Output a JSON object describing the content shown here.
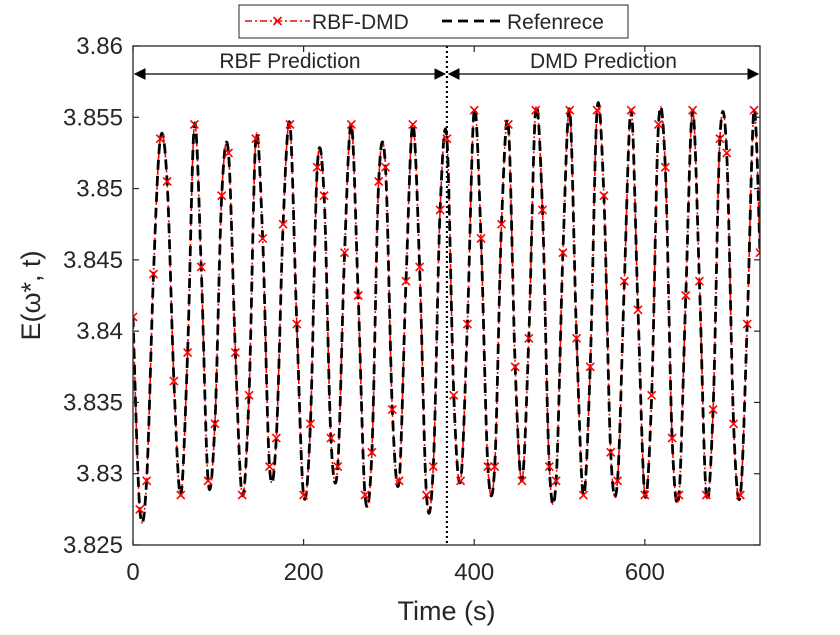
{
  "chart_data": {
    "type": "line",
    "xlabel": "Time (s)",
    "ylabel": "E(ω*, t)",
    "xlim": [
      0,
      735
    ],
    "ylim": [
      3.825,
      3.86
    ],
    "x_ticks": [
      0,
      200,
      400,
      600
    ],
    "y_ticks": [
      3.825,
      3.83,
      3.835,
      3.84,
      3.845,
      3.85,
      3.855,
      3.86
    ],
    "x_tick_labels": [
      "0",
      "200",
      "400",
      "600"
    ],
    "y_tick_labels": [
      "3.825",
      "3.83",
      "3.835",
      "3.84",
      "3.845",
      "3.85",
      "3.855",
      "3.86"
    ],
    "grid": false,
    "legend_position": "top-center",
    "split_x": 368,
    "regions": [
      {
        "label": "RBF Prediction",
        "from": 0,
        "to": 368
      },
      {
        "label": "DMD Prediction",
        "from": 368,
        "to": 735
      }
    ],
    "series": [
      {
        "name": "RBF-DMD",
        "color": "#ff0000",
        "style": "dash-dot",
        "marker": "x",
        "x": [
          0,
          8,
          16,
          24,
          32,
          40,
          48,
          56,
          64,
          72,
          80,
          88,
          96,
          104,
          112,
          120,
          128,
          136,
          144,
          152,
          160,
          168,
          176,
          184,
          192,
          200,
          208,
          216,
          224,
          232,
          240,
          248,
          256,
          264,
          272,
          280,
          288,
          296,
          304,
          312,
          320,
          328,
          336,
          344,
          352,
          360,
          368,
          376,
          384,
          392,
          400,
          408,
          416,
          424,
          432,
          440,
          448,
          456,
          464,
          472,
          480,
          488,
          496,
          504,
          512,
          520,
          528,
          536,
          544,
          552,
          560,
          568,
          576,
          584,
          592,
          600,
          608,
          616,
          624,
          632,
          640,
          648,
          656,
          664,
          672,
          680,
          688,
          696,
          704,
          712,
          720,
          728,
          735
        ],
        "y": [
          3.841,
          3.8275,
          3.8295,
          3.844,
          3.8535,
          3.8505,
          3.8365,
          3.8285,
          3.8385,
          3.8545,
          3.8445,
          3.8295,
          3.8335,
          3.8495,
          3.8525,
          3.8385,
          3.8285,
          3.8355,
          3.8535,
          3.8465,
          3.8305,
          3.8325,
          3.8475,
          3.8545,
          3.8405,
          3.8285,
          3.8335,
          3.8515,
          3.8495,
          3.8325,
          3.8305,
          3.8455,
          3.8545,
          3.8425,
          3.8285,
          3.8315,
          3.8505,
          3.8515,
          3.8345,
          3.8295,
          3.8435,
          3.8545,
          3.8445,
          3.8285,
          3.8305,
          3.8485,
          3.8535,
          3.8355,
          3.8295,
          3.8405,
          3.8555,
          3.8465,
          3.8305,
          3.8305,
          3.8475,
          3.8545,
          3.8375,
          3.8295,
          3.8395,
          3.8555,
          3.8485,
          3.8305,
          3.8295,
          3.8455,
          3.8555,
          3.8395,
          3.8285,
          3.8375,
          3.8555,
          3.8495,
          3.8315,
          3.8295,
          3.8435,
          3.8555,
          3.8415,
          3.8285,
          3.8355,
          3.8545,
          3.8515,
          3.8325,
          3.8285,
          3.8425,
          3.8555,
          3.8435,
          3.8285,
          3.8345,
          3.8535,
          3.8525,
          3.8335,
          3.8285,
          3.8405,
          3.8555,
          3.8455
        ]
      },
      {
        "name": "Refenrece",
        "color": "#000000",
        "style": "dashed",
        "marker": "none",
        "x": [
          0,
          8,
          16,
          24,
          32,
          40,
          48,
          56,
          64,
          72,
          80,
          88,
          96,
          104,
          112,
          120,
          128,
          136,
          144,
          152,
          160,
          168,
          176,
          184,
          192,
          200,
          208,
          216,
          224,
          232,
          240,
          248,
          256,
          264,
          272,
          280,
          288,
          296,
          304,
          312,
          320,
          328,
          336,
          344,
          352,
          360,
          368,
          376,
          384,
          392,
          400,
          408,
          416,
          424,
          432,
          440,
          448,
          456,
          464,
          472,
          480,
          488,
          496,
          504,
          512,
          520,
          528,
          536,
          544,
          552,
          560,
          568,
          576,
          584,
          592,
          600,
          608,
          616,
          624,
          632,
          640,
          648,
          656,
          664,
          672,
          680,
          688,
          696,
          704,
          712,
          720,
          728,
          735
        ],
        "y": [
          3.841,
          3.8275,
          3.8295,
          3.844,
          3.8535,
          3.8505,
          3.8365,
          3.8285,
          3.8385,
          3.8545,
          3.8445,
          3.8295,
          3.8335,
          3.8495,
          3.8525,
          3.8385,
          3.8285,
          3.8355,
          3.8535,
          3.8465,
          3.8305,
          3.8325,
          3.8475,
          3.8545,
          3.8405,
          3.8285,
          3.8335,
          3.8515,
          3.8495,
          3.8325,
          3.8305,
          3.8455,
          3.8545,
          3.8425,
          3.8285,
          3.8315,
          3.8505,
          3.8515,
          3.8345,
          3.8295,
          3.8435,
          3.8545,
          3.8445,
          3.8285,
          3.8305,
          3.8485,
          3.8535,
          3.8355,
          3.8295,
          3.8405,
          3.8555,
          3.8465,
          3.8305,
          3.8305,
          3.8475,
          3.8545,
          3.8375,
          3.8295,
          3.8395,
          3.8555,
          3.8485,
          3.8305,
          3.8295,
          3.8455,
          3.8555,
          3.8395,
          3.8285,
          3.8375,
          3.8555,
          3.8495,
          3.8315,
          3.8295,
          3.8435,
          3.8555,
          3.8415,
          3.8285,
          3.8355,
          3.8545,
          3.8515,
          3.8325,
          3.8285,
          3.8425,
          3.8555,
          3.8435,
          3.8285,
          3.8345,
          3.8535,
          3.8525,
          3.8335,
          3.8285,
          3.8405,
          3.8555,
          3.8455
        ]
      }
    ]
  }
}
